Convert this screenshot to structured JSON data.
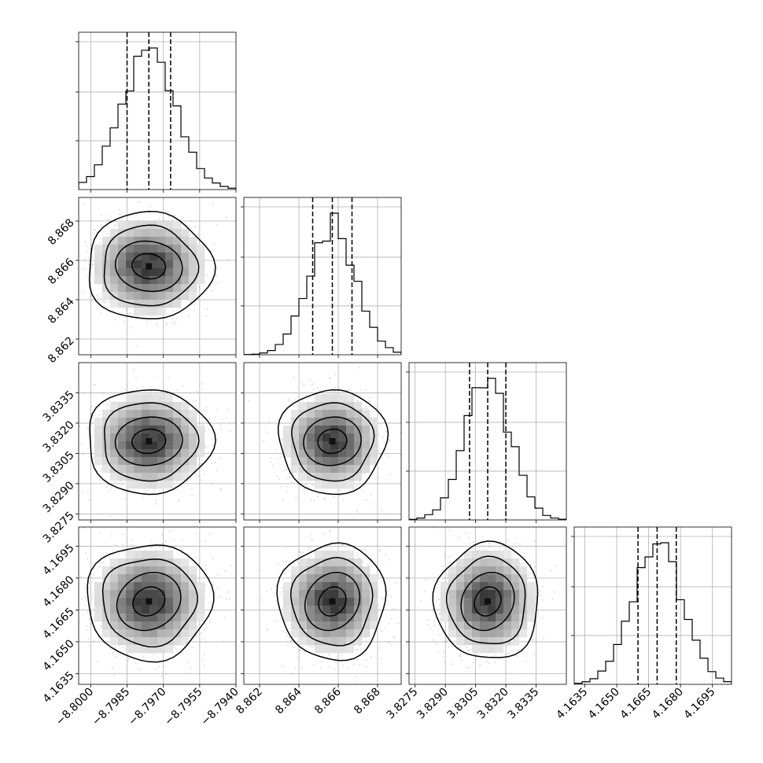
{
  "chart_data": {
    "type": "corner",
    "n_params": 4,
    "params": [
      {
        "median": -8.7976,
        "sigma": 0.0009,
        "lo": -8.8005,
        "hi": -8.794,
        "ticks": [
          -8.8,
          -8.7985,
          -8.797,
          -8.7955,
          -8.794
        ],
        "tick_labels": [
          "−8.8000",
          "−8.7985",
          "−8.7970",
          "−8.7955",
          "−8.7940"
        ],
        "quantiles": [
          -8.7985,
          -8.7976,
          -8.7967
        ]
      },
      {
        "median": 8.8657,
        "sigma": 0.00095,
        "lo": 8.8612,
        "hi": 8.8692,
        "ticks": [
          8.862,
          8.864,
          8.866,
          8.868
        ],
        "tick_labels": [
          "8.862",
          "8.864",
          "8.866",
          "8.868"
        ],
        "quantiles": [
          8.8647,
          8.8657,
          8.8667
        ]
      },
      {
        "median": 3.8311,
        "sigma": 0.0009,
        "lo": 3.8272,
        "hi": 3.835,
        "ticks": [
          3.8275,
          3.829,
          3.8305,
          3.832,
          3.8335
        ],
        "tick_labels": [
          "3.8275",
          "3.8290",
          "3.8305",
          "3.8320",
          "3.8335"
        ],
        "quantiles": [
          3.8302,
          3.8311,
          3.832
        ]
      },
      {
        "median": 4.1669,
        "sigma": 0.00095,
        "lo": 4.163,
        "hi": 4.1704,
        "ticks": [
          4.1635,
          4.165,
          4.1665,
          4.168,
          4.1695
        ],
        "tick_labels": [
          "4.1635",
          "4.1650",
          "4.1665",
          "4.1680",
          "4.1695"
        ],
        "quantiles": [
          4.166,
          4.1669,
          4.1678
        ]
      }
    ],
    "histogram_bins": 20,
    "contour_levels_sigma": [
      0.5,
      1.0,
      1.5,
      2.0
    ],
    "quantile_levels": [
      0.16,
      0.5,
      0.84
    ],
    "grid": true,
    "title": "",
    "axis_labels": []
  }
}
